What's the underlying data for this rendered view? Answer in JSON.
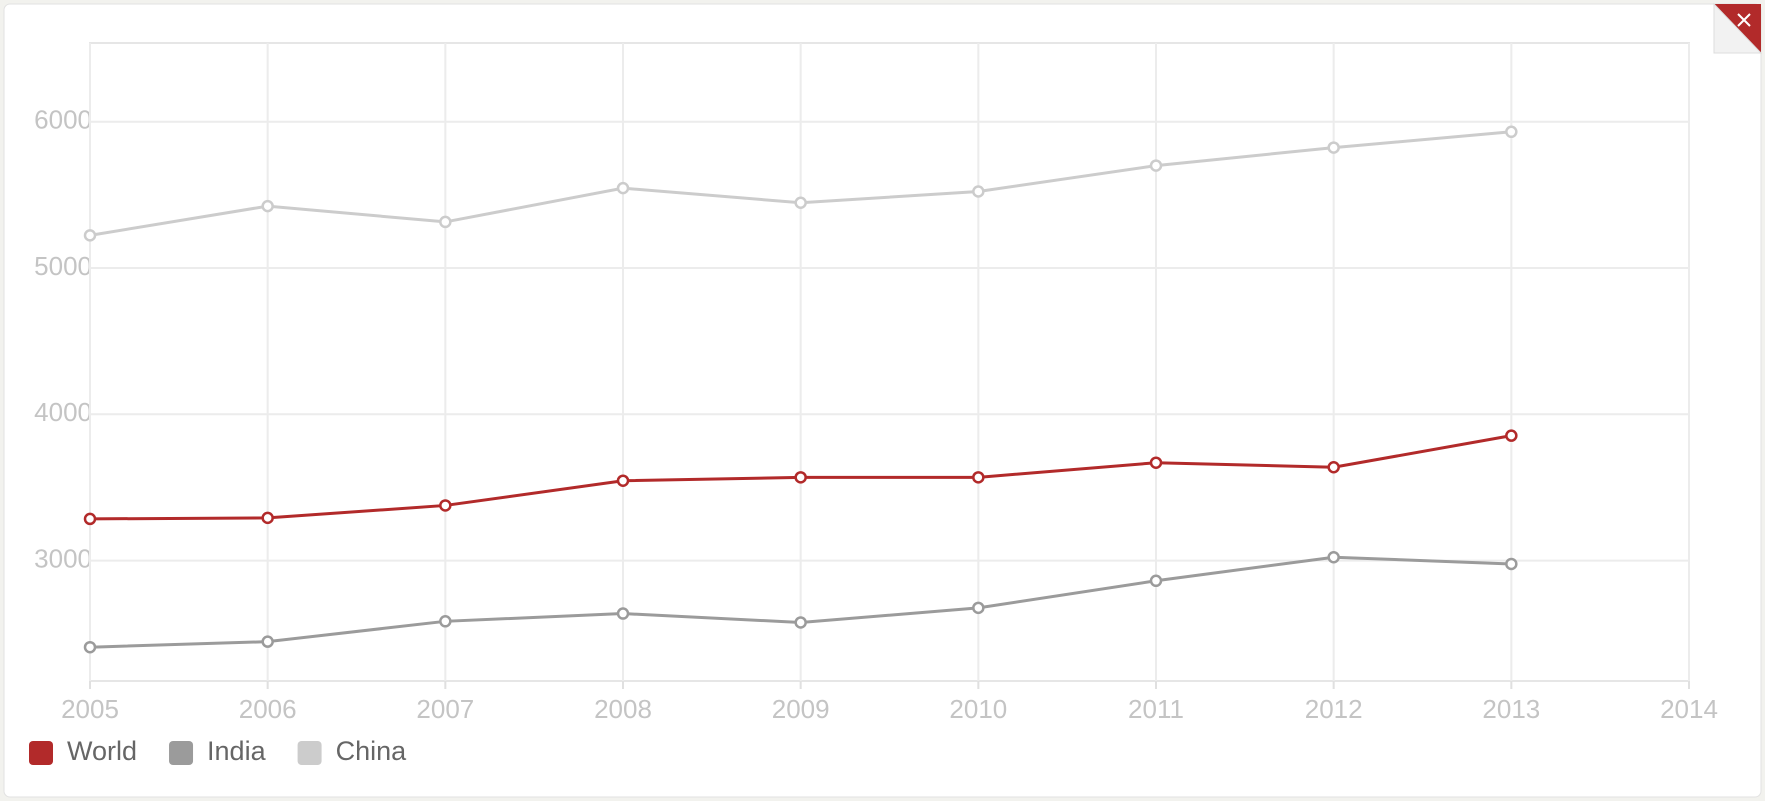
{
  "chart_data": {
    "type": "line",
    "x": [
      2005,
      2006,
      2007,
      2008,
      2009,
      2010,
      2011,
      2012,
      2013
    ],
    "series": [
      {
        "name": "World",
        "color": "#b22a2a",
        "values": [
          3285,
          3292,
          3377,
          3546,
          3569,
          3569,
          3669,
          3638,
          3854
        ]
      },
      {
        "name": "India",
        "color": "#9b9b9b",
        "values": [
          2408,
          2446,
          2585,
          2638,
          2577,
          2677,
          2862,
          3023,
          2977
        ]
      },
      {
        "name": "China",
        "color": "#cccccc",
        "values": [
          5223,
          5423,
          5315,
          5546,
          5446,
          5523,
          5700,
          5823,
          5931
        ]
      }
    ],
    "xlim": [
      2005,
      2014
    ],
    "xticks": [
      2005,
      2006,
      2007,
      2008,
      2009,
      2010,
      2011,
      2012,
      2013,
      2014
    ],
    "ylim": [
      2177,
      6538
    ],
    "yticks": [
      3000,
      4000,
      5000,
      6000
    ],
    "grid": true,
    "legend": "bottom-left"
  }
}
